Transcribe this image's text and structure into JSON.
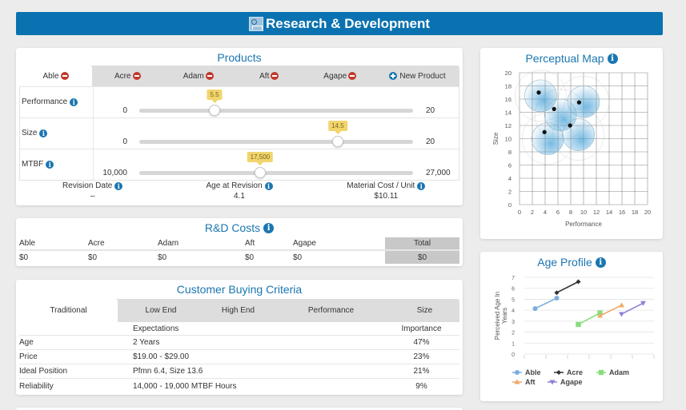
{
  "header": {
    "title": "Research & Development",
    "icon": "rd-logo-icon"
  },
  "products": {
    "title": "Products",
    "tabs": [
      {
        "label": "Able",
        "active": true,
        "icon": "remove-icon"
      },
      {
        "label": "Acre",
        "active": false,
        "icon": "remove-icon"
      },
      {
        "label": "Adam",
        "active": false,
        "icon": "remove-icon"
      },
      {
        "label": "Aft",
        "active": false,
        "icon": "remove-icon"
      },
      {
        "label": "Agape",
        "active": false,
        "icon": "remove-icon"
      }
    ],
    "new_product_label": "New Product",
    "sliders": [
      {
        "label": "Performance",
        "min": 0,
        "max": 20,
        "value": 5.5,
        "min_label": "0",
        "max_label": "20",
        "value_label": "5.5"
      },
      {
        "label": "Size",
        "min": 0,
        "max": 20,
        "value": 14.5,
        "min_label": "0",
        "max_label": "20",
        "value_label": "14.5"
      },
      {
        "label": "MTBF",
        "min": 10000,
        "max": 27000,
        "value": 17500,
        "min_label": "10,000",
        "max_label": "27,000",
        "value_label": "17,500"
      }
    ],
    "footer": [
      {
        "label": "Revision Date",
        "value": "–"
      },
      {
        "label": "Age at Revision",
        "value": "4.1"
      },
      {
        "label": "Material Cost / Unit",
        "value": "$10.11"
      }
    ]
  },
  "rd_costs": {
    "title": "R&D Costs",
    "headers": [
      "Able",
      "Acre",
      "Adam",
      "Aft",
      "Agape"
    ],
    "values": [
      "$0",
      "$0",
      "$0",
      "$0",
      "$0"
    ],
    "total_label": "Total",
    "total_value": "$0"
  },
  "criteria": {
    "title": "Customer Buying Criteria",
    "tabs": [
      "Traditional",
      "Low End",
      "High End",
      "Performance",
      "Size"
    ],
    "active_tab": 0,
    "col_expectations": "Expectations",
    "col_importance": "Importance",
    "rows": [
      {
        "name": "Age",
        "expectation": "2 Years",
        "importance": "47%"
      },
      {
        "name": "Price",
        "expectation": "$19.00 - $29.00",
        "importance": "23%"
      },
      {
        "name": "Ideal Position",
        "expectation": "Pfmn 6.4, Size 13.6",
        "importance": "21%"
      },
      {
        "name": "Reliability",
        "expectation": "14,000 - 19,000 MTBF Hours",
        "importance": "9%"
      }
    ]
  },
  "chart_data": [
    {
      "type": "scatter",
      "title": "Perceptual Map",
      "xlabel": "Performance",
      "ylabel": "Size",
      "xlim": [
        0,
        20
      ],
      "ylim": [
        0,
        20
      ],
      "xticks": [
        "0",
        "2",
        "4",
        "6",
        "8",
        "10",
        "12",
        "14",
        "16",
        "18",
        "20"
      ],
      "yticks": [
        "0",
        "2",
        "4",
        "6",
        "8",
        "10",
        "12",
        "14",
        "16",
        "18",
        "20"
      ],
      "grid": true,
      "points": [
        {
          "x": 3.0,
          "y": 17.0
        },
        {
          "x": 5.4,
          "y": 14.5
        },
        {
          "x": 9.3,
          "y": 15.5
        },
        {
          "x": 7.9,
          "y": 12.0
        },
        {
          "x": 3.9,
          "y": 11.0
        }
      ],
      "segments": [
        {
          "cx": 3.3,
          "cy": 16.5,
          "r": 2.5
        },
        {
          "cx": 6.4,
          "cy": 13.6,
          "r": 2.5
        },
        {
          "cx": 10.0,
          "cy": 15.6,
          "r": 2.5
        },
        {
          "cx": 9.2,
          "cy": 10.6,
          "r": 2.5
        },
        {
          "cx": 4.4,
          "cy": 10.0,
          "r": 2.5
        }
      ],
      "colors": {
        "segment": "#4aa3d8",
        "point": "#111111",
        "grid": "#555555"
      }
    },
    {
      "type": "line",
      "title": "Age Profile",
      "ylabel": "Perceived Age In Years",
      "ylim": [
        0,
        7
      ],
      "yticks": [
        "0",
        "1",
        "2",
        "3",
        "4",
        "5",
        "6",
        "7"
      ],
      "grid": true,
      "legend": "bottom",
      "series": [
        {
          "name": "Able",
          "color": "#7aaede",
          "marker": "circle",
          "points": [
            [
              0.5,
              4.15
            ],
            [
              1.5,
              5.1
            ]
          ]
        },
        {
          "name": "Acre",
          "color": "#333333",
          "marker": "diamond",
          "points": [
            [
              1.5,
              5.6
            ],
            [
              2.5,
              6.6
            ]
          ]
        },
        {
          "name": "Adam",
          "color": "#86de7a",
          "marker": "square",
          "points": [
            [
              2.5,
              2.7
            ],
            [
              3.5,
              3.75
            ]
          ]
        },
        {
          "name": "Aft",
          "color": "#f0a868",
          "marker": "triangle",
          "points": [
            [
              3.5,
              3.5
            ],
            [
              4.5,
              4.45
            ]
          ]
        },
        {
          "name": "Agape",
          "color": "#8c82d6",
          "marker": "triangle-down",
          "points": [
            [
              4.5,
              3.65
            ],
            [
              5.5,
              4.65
            ]
          ]
        }
      ],
      "x_categories": 6
    }
  ]
}
